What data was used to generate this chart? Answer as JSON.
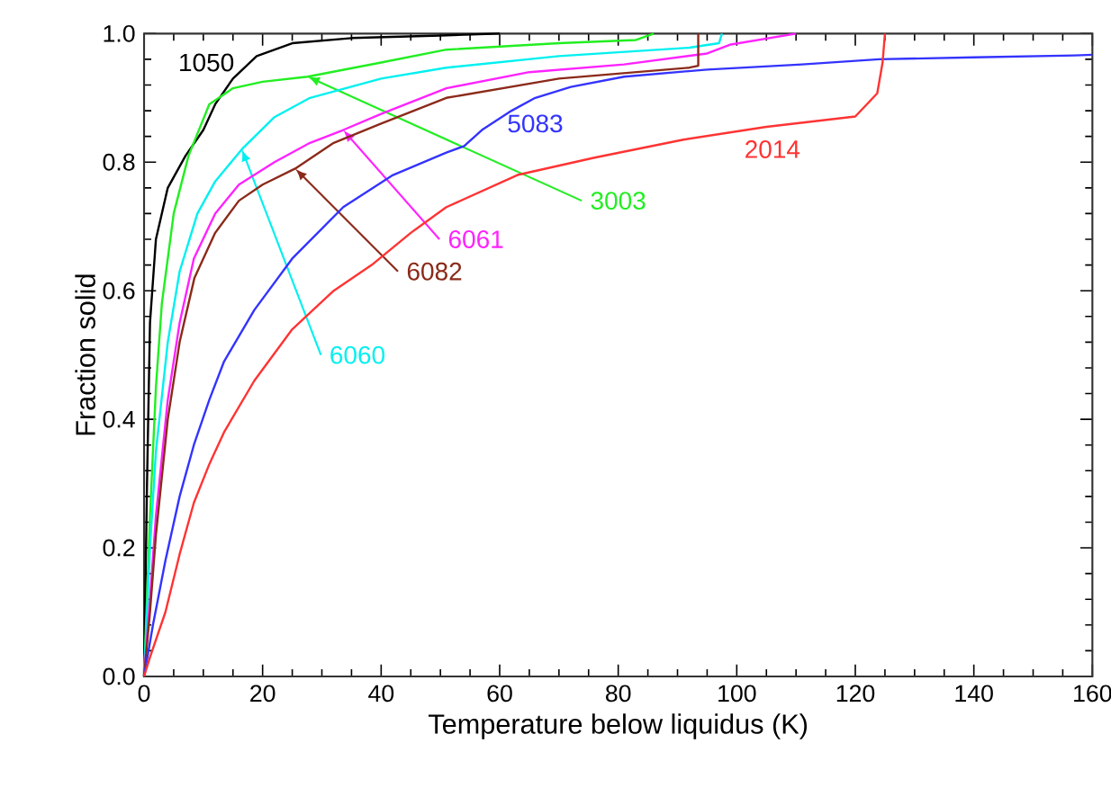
{
  "chart_data": {
    "type": "line",
    "xlabel": "Temperature below liquidus (K)",
    "ylabel": "Fraction solid",
    "xlim": [
      0,
      160
    ],
    "xticks": [
      0,
      20,
      40,
      60,
      80,
      100,
      120,
      140,
      160
    ],
    "ylim": [
      0,
      1.0
    ],
    "yticks": [
      {
        "value": 0,
        "label": "0.0"
      },
      {
        "value": 0.2,
        "label": "0.2"
      },
      {
        "value": 0.4,
        "label": "0.4"
      },
      {
        "value": 0.6,
        "label": "0.6"
      },
      {
        "value": 0.8,
        "label": "0.8"
      },
      {
        "value": 1.0,
        "label": "1.0"
      }
    ],
    "grid": false,
    "marker": "none",
    "line_style": "solid",
    "series": [
      {
        "name": "1050",
        "color": "#000000",
        "x": [
          0,
          0.5,
          1,
          2,
          4,
          7,
          10,
          12,
          15,
          19,
          25,
          35,
          50,
          60
        ],
        "values": [
          0,
          0.3,
          0.55,
          0.68,
          0.76,
          0.81,
          0.85,
          0.89,
          0.93,
          0.965,
          0.985,
          0.993,
          0.997,
          1.0
        ]
      },
      {
        "name": "3003",
        "color": "#22ee22",
        "x": [
          0,
          1,
          2,
          3,
          5,
          7.5,
          11,
          15,
          20,
          27.6,
          40,
          51,
          70,
          83,
          86
        ],
        "values": [
          0,
          0.25,
          0.45,
          0.58,
          0.72,
          0.81,
          0.89,
          0.915,
          0.925,
          0.933,
          0.955,
          0.975,
          0.985,
          0.99,
          1.0
        ]
      },
      {
        "name": "6060",
        "color": "#00f0f0",
        "x": [
          0,
          1,
          2,
          4,
          6,
          9,
          12,
          16.5,
          22,
          28,
          40,
          51,
          70,
          92,
          97,
          97.5
        ],
        "values": [
          0,
          0.2,
          0.35,
          0.52,
          0.63,
          0.72,
          0.77,
          0.82,
          0.87,
          0.9,
          0.93,
          0.947,
          0.965,
          0.978,
          0.985,
          1.0
        ]
      },
      {
        "name": "6061",
        "color": "#ff22ff",
        "x": [
          0,
          1,
          2,
          4,
          6,
          8.4,
          12,
          16,
          22,
          28,
          33.6,
          40,
          51,
          65,
          81,
          95,
          99,
          110
        ],
        "values": [
          0,
          0.12,
          0.25,
          0.43,
          0.55,
          0.65,
          0.72,
          0.765,
          0.8,
          0.83,
          0.85,
          0.875,
          0.915,
          0.94,
          0.952,
          0.969,
          0.983,
          1.0
        ]
      },
      {
        "name": "6082",
        "color": "#8b2a1a",
        "x": [
          0,
          1,
          2,
          4,
          6,
          8.5,
          12,
          16,
          20,
          25.5,
          32,
          40,
          51,
          70,
          92,
          93.5,
          93.5
        ],
        "values": [
          0,
          0.1,
          0.22,
          0.4,
          0.52,
          0.62,
          0.69,
          0.74,
          0.765,
          0.79,
          0.83,
          0.86,
          0.9,
          0.93,
          0.947,
          0.95,
          1.0
        ]
      },
      {
        "name": "5083",
        "color": "#3333ff",
        "x": [
          0,
          1.5,
          3.6,
          6,
          8.4,
          11,
          13.5,
          18.6,
          25,
          33.6,
          42,
          51,
          54,
          57,
          62,
          66,
          72,
          81,
          95,
          111,
          124,
          140,
          157,
          160
        ],
        "values": [
          0,
          0.08,
          0.18,
          0.28,
          0.36,
          0.43,
          0.49,
          0.57,
          0.65,
          0.73,
          0.78,
          0.815,
          0.825,
          0.85,
          0.88,
          0.9,
          0.917,
          0.933,
          0.944,
          0.952,
          0.96,
          0.963,
          0.966,
          0.967
        ]
      },
      {
        "name": "2014",
        "color": "#ff3333",
        "x": [
          0,
          1,
          3.6,
          6,
          8.4,
          11,
          13.5,
          18.6,
          25,
          32,
          38.4,
          45,
          51,
          63,
          76,
          91,
          105,
          120,
          123.7,
          124.6,
          125
        ],
        "values": [
          0,
          0.03,
          0.1,
          0.19,
          0.27,
          0.33,
          0.38,
          0.46,
          0.54,
          0.6,
          0.64,
          0.69,
          0.73,
          0.78,
          0.807,
          0.835,
          0.855,
          0.871,
          0.907,
          0.955,
          1.0
        ]
      }
    ]
  }
}
